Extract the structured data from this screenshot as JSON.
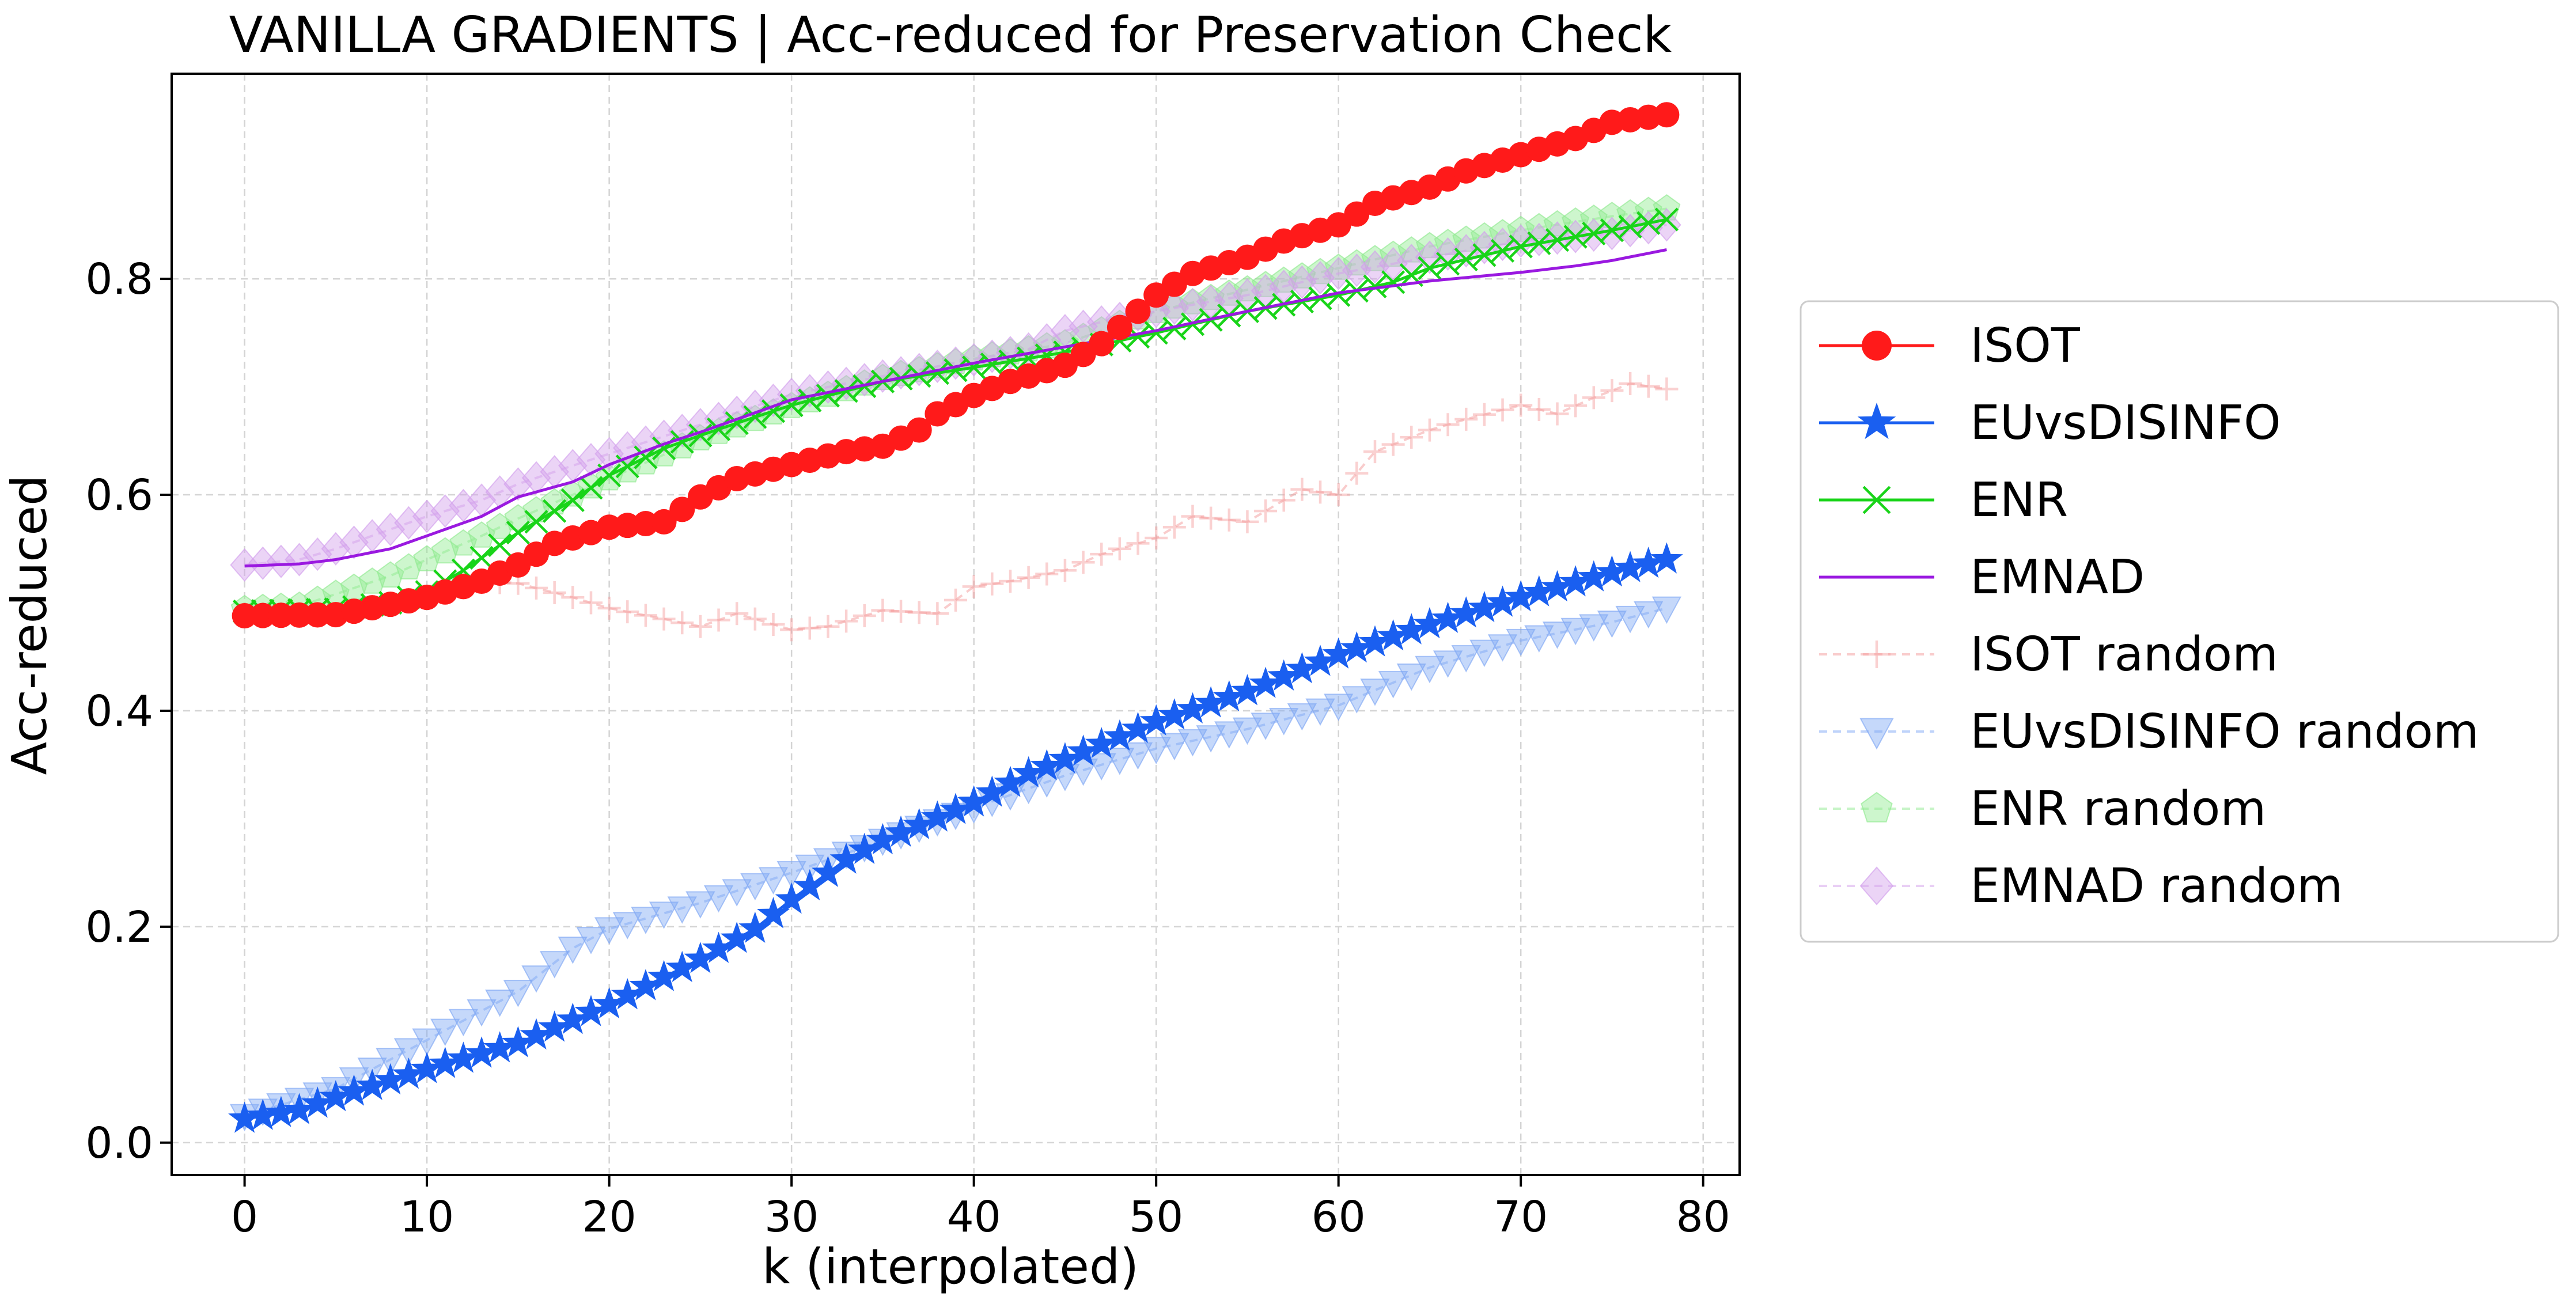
{
  "chart_data": {
    "type": "line",
    "title": "VANILLA GRADIENTS | Acc-reduced for Preservation Check",
    "xlabel": "k (interpolated)",
    "ylabel": "Acc-reduced",
    "xlim": [
      -4,
      82
    ],
    "ylim": [
      -0.03,
      0.99
    ],
    "xticks": [
      0,
      10,
      20,
      30,
      40,
      50,
      60,
      70,
      80
    ],
    "xtick_labels": [
      "0",
      "10",
      "20",
      "30",
      "40",
      "50",
      "60",
      "70",
      "80"
    ],
    "yticks": [
      0.0,
      0.2,
      0.4,
      0.6,
      0.8
    ],
    "ytick_labels": [
      "0.0",
      "0.2",
      "0.4",
      "0.6",
      "0.8"
    ],
    "grid": true,
    "legend_position": "outside-right",
    "x_range": [
      0,
      78
    ],
    "series": [
      {
        "name": "ISOT",
        "color": "#ff1a1a",
        "marker": "circle",
        "linestyle": "solid",
        "anchors": [
          [
            0,
            0.488
          ],
          [
            5,
            0.489
          ],
          [
            10,
            0.505
          ],
          [
            13,
            0.52
          ],
          [
            15,
            0.535
          ],
          [
            17,
            0.555
          ],
          [
            20,
            0.57
          ],
          [
            23,
            0.575
          ],
          [
            25,
            0.598
          ],
          [
            27,
            0.615
          ],
          [
            30,
            0.628
          ],
          [
            33,
            0.64
          ],
          [
            35,
            0.645
          ],
          [
            37,
            0.66
          ],
          [
            38,
            0.675
          ],
          [
            40,
            0.692
          ],
          [
            42,
            0.705
          ],
          [
            45,
            0.72
          ],
          [
            47,
            0.74
          ],
          [
            49,
            0.77
          ],
          [
            50,
            0.785
          ],
          [
            52,
            0.805
          ],
          [
            55,
            0.82
          ],
          [
            57,
            0.835
          ],
          [
            60,
            0.85
          ],
          [
            62,
            0.87
          ],
          [
            65,
            0.885
          ],
          [
            67,
            0.9
          ],
          [
            70,
            0.915
          ],
          [
            73,
            0.93
          ],
          [
            75,
            0.945
          ],
          [
            78,
            0.952
          ]
        ]
      },
      {
        "name": "EUvsDISINFO",
        "color": "#1a5ff0",
        "marker": "star",
        "linestyle": "solid",
        "anchors": [
          [
            0,
            0.022
          ],
          [
            3,
            0.03
          ],
          [
            5,
            0.042
          ],
          [
            10,
            0.068
          ],
          [
            15,
            0.092
          ],
          [
            20,
            0.128
          ],
          [
            25,
            0.17
          ],
          [
            28,
            0.198
          ],
          [
            30,
            0.225
          ],
          [
            33,
            0.262
          ],
          [
            35,
            0.28
          ],
          [
            40,
            0.315
          ],
          [
            43,
            0.342
          ],
          [
            45,
            0.355
          ],
          [
            50,
            0.39
          ],
          [
            55,
            0.418
          ],
          [
            60,
            0.452
          ],
          [
            65,
            0.48
          ],
          [
            70,
            0.505
          ],
          [
            75,
            0.528
          ],
          [
            78,
            0.54
          ]
        ]
      },
      {
        "name": "ENR",
        "color": "#19d419",
        "marker": "x",
        "linestyle": "solid",
        "anchors": [
          [
            0,
            0.492
          ],
          [
            5,
            0.494
          ],
          [
            8,
            0.5
          ],
          [
            10,
            0.51
          ],
          [
            12,
            0.53
          ],
          [
            15,
            0.565
          ],
          [
            18,
            0.595
          ],
          [
            20,
            0.618
          ],
          [
            23,
            0.643
          ],
          [
            25,
            0.655
          ],
          [
            28,
            0.672
          ],
          [
            30,
            0.683
          ],
          [
            35,
            0.705
          ],
          [
            40,
            0.718
          ],
          [
            45,
            0.732
          ],
          [
            50,
            0.75
          ],
          [
            55,
            0.77
          ],
          [
            60,
            0.785
          ],
          [
            63,
            0.797
          ],
          [
            65,
            0.81
          ],
          [
            70,
            0.83
          ],
          [
            75,
            0.845
          ],
          [
            78,
            0.855
          ]
        ]
      },
      {
        "name": "EMNAD",
        "color": "#9a19e0",
        "marker": "none",
        "linestyle": "solid",
        "anchors": [
          [
            0,
            0.534
          ],
          [
            3,
            0.536
          ],
          [
            5,
            0.54
          ],
          [
            8,
            0.55
          ],
          [
            10,
            0.562
          ],
          [
            13,
            0.58
          ],
          [
            15,
            0.598
          ],
          [
            18,
            0.612
          ],
          [
            20,
            0.628
          ],
          [
            23,
            0.647
          ],
          [
            25,
            0.658
          ],
          [
            28,
            0.676
          ],
          [
            30,
            0.688
          ],
          [
            35,
            0.705
          ],
          [
            40,
            0.722
          ],
          [
            45,
            0.737
          ],
          [
            50,
            0.752
          ],
          [
            55,
            0.77
          ],
          [
            60,
            0.787
          ],
          [
            65,
            0.798
          ],
          [
            70,
            0.806
          ],
          [
            73,
            0.812
          ],
          [
            75,
            0.817
          ],
          [
            78,
            0.827
          ]
        ]
      },
      {
        "name": "ISOT random",
        "color": "#f49a9a",
        "marker": "plus",
        "linestyle": "dashed",
        "anchors": [
          [
            0,
            0.49
          ],
          [
            5,
            0.49
          ],
          [
            10,
            0.505
          ],
          [
            12,
            0.52
          ],
          [
            15,
            0.518
          ],
          [
            18,
            0.505
          ],
          [
            20,
            0.495
          ],
          [
            23,
            0.485
          ],
          [
            25,
            0.478
          ],
          [
            27,
            0.49
          ],
          [
            30,
            0.475
          ],
          [
            32,
            0.478
          ],
          [
            35,
            0.493
          ],
          [
            38,
            0.49
          ],
          [
            40,
            0.515
          ],
          [
            42,
            0.52
          ],
          [
            45,
            0.53
          ],
          [
            47,
            0.545
          ],
          [
            50,
            0.56
          ],
          [
            52,
            0.58
          ],
          [
            55,
            0.575
          ],
          [
            58,
            0.605
          ],
          [
            60,
            0.6
          ],
          [
            62,
            0.64
          ],
          [
            65,
            0.66
          ],
          [
            67,
            0.67
          ],
          [
            70,
            0.683
          ],
          [
            72,
            0.675
          ],
          [
            74,
            0.69
          ],
          [
            76,
            0.703
          ],
          [
            78,
            0.698
          ]
        ]
      },
      {
        "name": "EUvsDISINFO random",
        "color": "#7fa8f5",
        "marker": "triangle-down",
        "linestyle": "dashed",
        "anchors": [
          [
            0,
            0.025
          ],
          [
            5,
            0.05
          ],
          [
            10,
            0.095
          ],
          [
            15,
            0.14
          ],
          [
            18,
            0.18
          ],
          [
            20,
            0.198
          ],
          [
            25,
            0.222
          ],
          [
            30,
            0.25
          ],
          [
            35,
            0.28
          ],
          [
            40,
            0.31
          ],
          [
            45,
            0.34
          ],
          [
            50,
            0.365
          ],
          [
            55,
            0.383
          ],
          [
            60,
            0.405
          ],
          [
            65,
            0.44
          ],
          [
            70,
            0.465
          ],
          [
            75,
            0.482
          ],
          [
            78,
            0.495
          ]
        ]
      },
      {
        "name": "ENR random",
        "color": "#90ea90",
        "marker": "pentagon",
        "linestyle": "dashed",
        "anchors": [
          [
            0,
            0.494
          ],
          [
            3,
            0.497
          ],
          [
            5,
            0.508
          ],
          [
            8,
            0.525
          ],
          [
            10,
            0.54
          ],
          [
            13,
            0.562
          ],
          [
            15,
            0.578
          ],
          [
            18,
            0.6
          ],
          [
            20,
            0.615
          ],
          [
            25,
            0.652
          ],
          [
            30,
            0.682
          ],
          [
            35,
            0.708
          ],
          [
            40,
            0.726
          ],
          [
            45,
            0.74
          ],
          [
            50,
            0.77
          ],
          [
            55,
            0.79
          ],
          [
            60,
            0.81
          ],
          [
            65,
            0.83
          ],
          [
            70,
            0.845
          ],
          [
            75,
            0.858
          ],
          [
            78,
            0.865
          ]
        ]
      },
      {
        "name": "EMNAD random",
        "color": "#d3a0ec",
        "marker": "diamond",
        "linestyle": "dashed",
        "anchors": [
          [
            0,
            0.535
          ],
          [
            3,
            0.54
          ],
          [
            5,
            0.55
          ],
          [
            8,
            0.568
          ],
          [
            10,
            0.58
          ],
          [
            13,
            0.595
          ],
          [
            15,
            0.61
          ],
          [
            18,
            0.627
          ],
          [
            20,
            0.638
          ],
          [
            25,
            0.665
          ],
          [
            28,
            0.682
          ],
          [
            30,
            0.693
          ],
          [
            35,
            0.71
          ],
          [
            40,
            0.725
          ],
          [
            43,
            0.735
          ],
          [
            45,
            0.752
          ],
          [
            47,
            0.76
          ],
          [
            50,
            0.77
          ],
          [
            55,
            0.785
          ],
          [
            60,
            0.805
          ],
          [
            65,
            0.82
          ],
          [
            70,
            0.835
          ],
          [
            75,
            0.842
          ],
          [
            78,
            0.85
          ]
        ]
      }
    ]
  }
}
